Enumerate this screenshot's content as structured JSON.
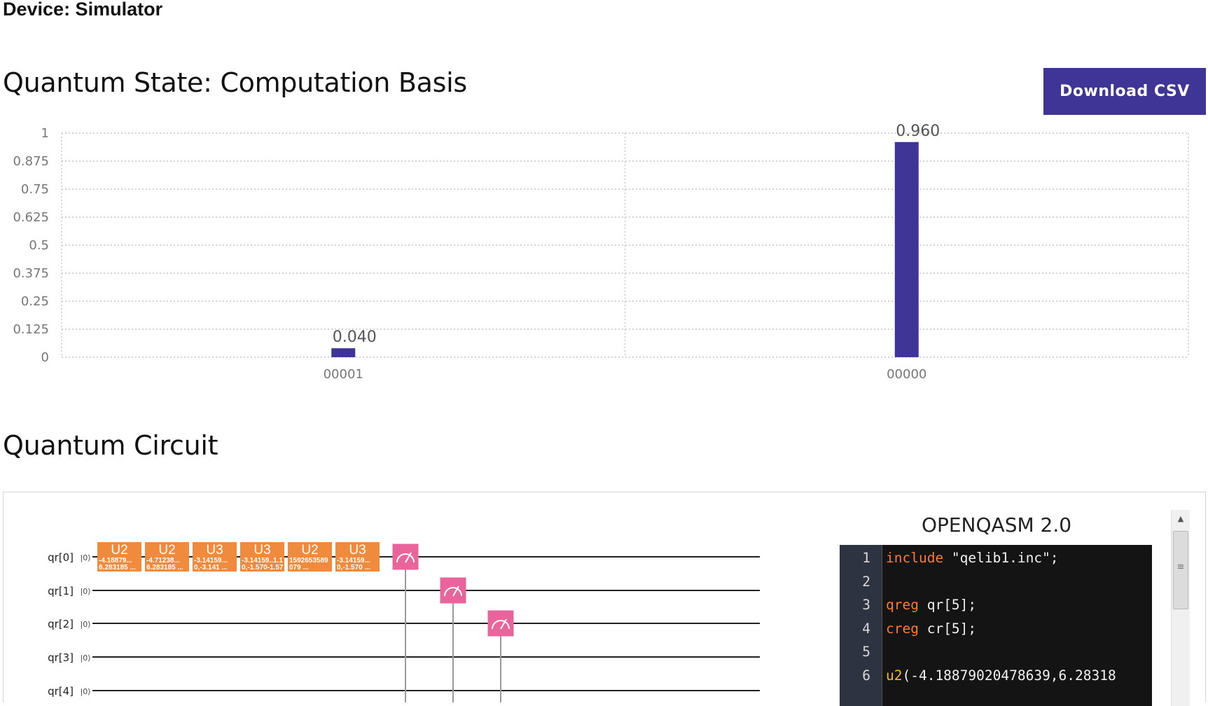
{
  "device": {
    "label": "Device: Simulator"
  },
  "state_section": {
    "title": "Quantum State: Computation Basis"
  },
  "actions": {
    "download_csv": "Download CSV"
  },
  "colors": {
    "accent": "#3f3596",
    "gate_u": "#f08a3c",
    "gate_measure": "#e8649a",
    "editor_bg": "#141414",
    "keyword": "#ff7a2f",
    "func": "#f5b820"
  },
  "chart_data": {
    "type": "bar",
    "title": "Quantum State: Computation Basis",
    "categories": [
      "00001",
      "00000"
    ],
    "values": [
      0.04,
      0.96
    ],
    "value_labels": [
      "0.040",
      "0.960"
    ],
    "yticks": [
      "0",
      "0.125",
      "0.25",
      "0.375",
      "0.5",
      "0.625",
      "0.75",
      "0.875",
      "1"
    ],
    "ylim": [
      0,
      1
    ],
    "xlabel": "",
    "ylabel": "",
    "grid": true
  },
  "circuit_section": {
    "title": "Quantum Circuit"
  },
  "circuit": {
    "qubits": [
      "qr[0]",
      "qr[1]",
      "qr[2]",
      "qr[3]",
      "qr[4]"
    ],
    "init_state": "|0⟩",
    "gates": [
      {
        "name": "U2",
        "params": [
          "-4.18879...",
          "6.283185 ..."
        ]
      },
      {
        "name": "U2",
        "params": [
          "-4.71238...",
          "6.283185 ..."
        ]
      },
      {
        "name": "U3",
        "params": [
          "-3.14159...",
          "0,-3.141 ..."
        ]
      },
      {
        "name": "U3",
        "params": [
          "-3.14159..1.1",
          "0,-1.570-1.57"
        ]
      },
      {
        "name": "U2",
        "params": [
          "1592653589",
          "079 ..."
        ]
      },
      {
        "name": "U3",
        "params": [
          "-3.14159...",
          "0,-1.570 ..."
        ]
      }
    ],
    "measurements": [
      "measure qr[0]",
      "measure qr[1]",
      "measure qr[2]"
    ]
  },
  "qasm": {
    "title": "OPENQASM 2.0",
    "lines": [
      {
        "num": "1",
        "kw": "include",
        "rest": " \"qelib1.inc\";"
      },
      {
        "num": "2",
        "kw": "",
        "rest": ""
      },
      {
        "num": "3",
        "kw": "qreg",
        "rest": " qr[5];"
      },
      {
        "num": "4",
        "kw": "creg",
        "rest": " cr[5];"
      },
      {
        "num": "5",
        "kw": "",
        "rest": ""
      },
      {
        "num": "6",
        "kw": "u2",
        "rest": "(-4.18879020478639,6.28318"
      }
    ]
  }
}
